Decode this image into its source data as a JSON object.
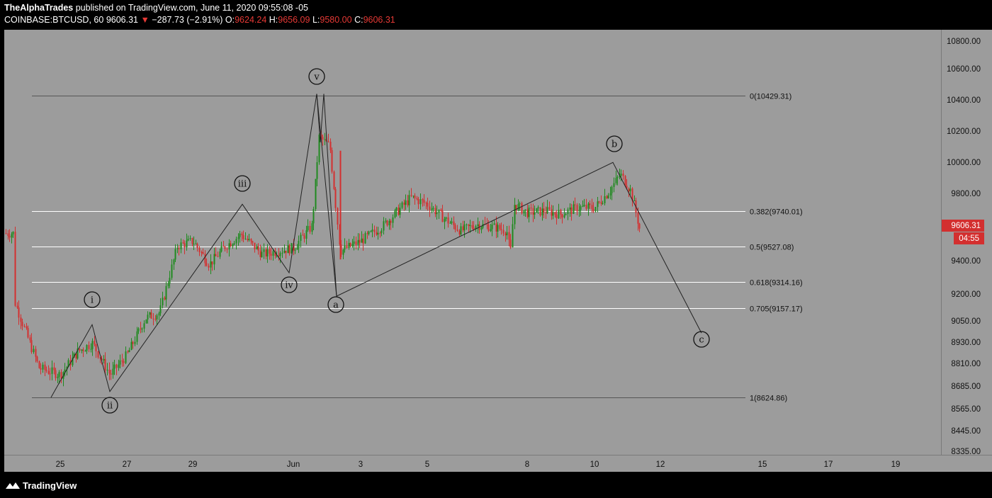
{
  "header": {
    "publisher": "TheAlphaTrades",
    "published_text": "published on TradingView.com, June 11, 2020 09:55:08 -05",
    "symbol_text": "COINBASE:BTCUSD, 60",
    "last": "9606.31",
    "change_arrow": "▼",
    "change": "−287.73 (−2.91%)",
    "o_label": "O:",
    "o_value": "9624.24",
    "h_label": "H:",
    "h_value": "9656.09",
    "l_label": "L:",
    "l_value": "9580.00",
    "c_label": "C:",
    "c_value": "9606.31"
  },
  "price_axis": {
    "ticks": [
      "10800.00",
      "10600.00",
      "10400.00",
      "10200.00",
      "10000.00",
      "9800.00",
      "9400.00",
      "9200.00",
      "9050.00",
      "8930.00",
      "8810.00",
      "8685.00",
      "8565.00",
      "8445.00",
      "8335.00"
    ],
    "current_price": "9606.31",
    "countdown": "04:55",
    "current_color": "#d32f2f"
  },
  "time_axis": {
    "ticks": [
      "25",
      "27",
      "29",
      "Jun",
      "3",
      "5",
      "8",
      "10",
      "12",
      "15",
      "17",
      "19"
    ]
  },
  "fib_levels": [
    {
      "ratio": "0",
      "price": 10429.31,
      "label": "0(10429.31)"
    },
    {
      "ratio": "0.382",
      "price": 9740.01,
      "label": "0.382(9740.01)"
    },
    {
      "ratio": "0.5",
      "price": 9527.08,
      "label": "0.5(9527.08)"
    },
    {
      "ratio": "0.618",
      "price": 9314.16,
      "label": "0.618(9314.16)"
    },
    {
      "ratio": "0.705",
      "price": 9157.17,
      "label": "0.705(9157.17)"
    },
    {
      "ratio": "1",
      "price": 8624.86,
      "label": "1(8624.86)"
    }
  ],
  "wave_labels": [
    "i",
    "ii",
    "iii",
    "iv",
    "v",
    "a",
    "b",
    "c"
  ],
  "chart_data": {
    "type": "candlestick",
    "symbol": "COINBASE:BTCUSD",
    "interval": "60",
    "x_ticks": [
      "25",
      "27",
      "29",
      "Jun",
      "3",
      "5",
      "8",
      "10",
      "12",
      "15",
      "17",
      "19"
    ],
    "y_ticks": [
      10800,
      10600,
      10400,
      10200,
      10000,
      9800,
      9400,
      9200,
      9050,
      8930,
      8810,
      8685,
      8565,
      8445,
      8335
    ],
    "ylim": [
      8335,
      10860
    ],
    "wave_path": [
      {
        "label": "",
        "price": 8624.86
      },
      {
        "label": "i",
        "price": 9060
      },
      {
        "label": "ii",
        "price": 8660
      },
      {
        "label": "iii",
        "price": 9780
      },
      {
        "label": "iv",
        "price": 9370
      },
      {
        "label": "v",
        "price": 10440
      },
      {
        "label": "a",
        "price": 9230
      },
      {
        "label": "b",
        "price": 10030
      },
      {
        "label": "c",
        "price": 9010
      }
    ],
    "candle_trend": [
      {
        "x": "24",
        "price": 9200
      },
      {
        "x": "24.5",
        "price": 8800
      },
      {
        "x": "25",
        "price": 8760
      },
      {
        "x": "25.5",
        "price": 8900
      },
      {
        "x": "26",
        "price": 8950
      },
      {
        "x": "26.5",
        "price": 8760
      },
      {
        "x": "27",
        "price": 8880
      },
      {
        "x": "27.5",
        "price": 9100
      },
      {
        "x": "28",
        "price": 9130
      },
      {
        "x": "28.5",
        "price": 9530
      },
      {
        "x": "29",
        "price": 9560
      },
      {
        "x": "29.5",
        "price": 9420
      },
      {
        "x": "30",
        "price": 9530
      },
      {
        "x": "30.5",
        "price": 9600
      },
      {
        "x": "31",
        "price": 9480
      },
      {
        "x": "Jun",
        "price": 9520
      },
      {
        "x": "1.5",
        "price": 9650
      },
      {
        "x": "1.8",
        "price": 10180
      },
      {
        "x": "2",
        "price": 10130
      },
      {
        "x": "2.2",
        "price": 9500
      },
      {
        "x": "3",
        "price": 9560
      },
      {
        "x": "3.5",
        "price": 9650
      },
      {
        "x": "4",
        "price": 9820
      },
      {
        "x": "4.5",
        "price": 9780
      },
      {
        "x": "5",
        "price": 9700
      },
      {
        "x": "5.5",
        "price": 9620
      },
      {
        "x": "6",
        "price": 9660
      },
      {
        "x": "6.5",
        "price": 9640
      },
      {
        "x": "7",
        "price": 9620
      },
      {
        "x": "7.3",
        "price": 9480
      },
      {
        "x": "7.5",
        "price": 9780
      },
      {
        "x": "8",
        "price": 9730
      },
      {
        "x": "8.5",
        "price": 9740
      },
      {
        "x": "9",
        "price": 9720
      },
      {
        "x": "9.5",
        "price": 9760
      },
      {
        "x": "10",
        "price": 9760
      },
      {
        "x": "10.3",
        "price": 9860
      },
      {
        "x": "10.6",
        "price": 9960
      },
      {
        "x": "11",
        "price": 9860
      },
      {
        "x": "11.3",
        "price": 9606
      }
    ]
  }
}
